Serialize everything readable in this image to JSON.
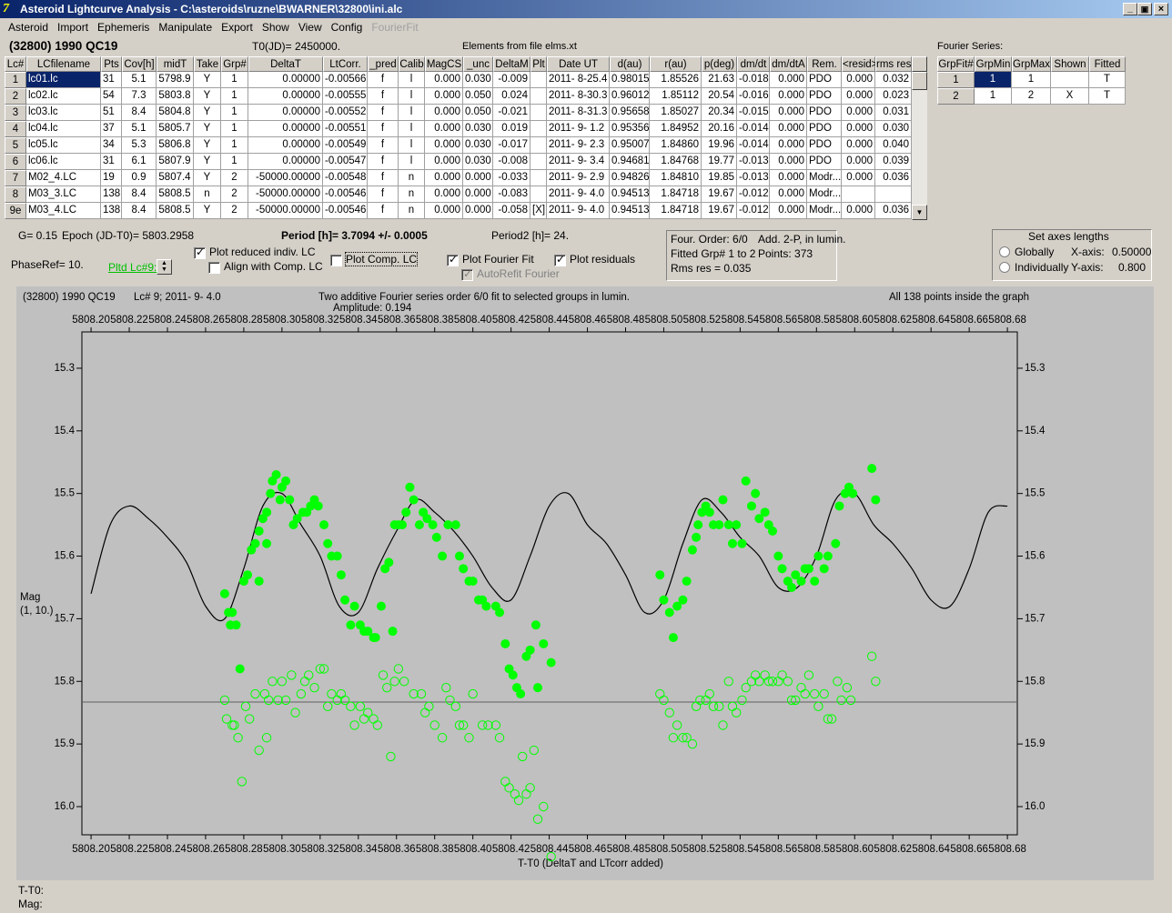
{
  "window": {
    "title": "Asteroid Lightcurve Analysis - C:\\asteroids\\ruzne\\BWARNER\\32800\\ini.alc",
    "menu": [
      "Asteroid",
      "Import",
      "Ephemeris",
      "Manipulate",
      "Export",
      "Show",
      "View",
      "Config",
      "FourierFit"
    ]
  },
  "header": {
    "object": "(32800) 1990 QC19",
    "t0": "T0(JD)= 2450000.",
    "elements": "Elements from file elms.xt"
  },
  "lc_table": {
    "columns": [
      "Lc#",
      "LCfilename",
      "Pts",
      "Cov[h]",
      "midT",
      "Take",
      "Grp#",
      "DeltaT",
      "LtCorr.",
      "_pred",
      "Calib",
      "MagCS",
      "_unc",
      "DeltaM",
      "Plt",
      "Date UT",
      "d(au)",
      "r(au)",
      "p(deg)",
      "dm/dt",
      "dm/dtA",
      "Rem.",
      "<resid>",
      "rms res"
    ],
    "rows": [
      [
        "1",
        "lc01.lc",
        "31",
        "5.1",
        "5798.9",
        "Y",
        "1",
        "0.00000",
        "-0.00566",
        "f",
        "l",
        "0.000",
        "0.030",
        "-0.009",
        null,
        "2011- 8-25.4",
        "0.98015",
        "1.85526",
        "21.63",
        "-0.018",
        "0.000",
        "PDO",
        "0.000",
        "0.032"
      ],
      [
        "2",
        "lc02.lc",
        "54",
        "7.3",
        "5803.8",
        "Y",
        "1",
        "0.00000",
        "-0.00555",
        "f",
        "l",
        "0.000",
        "0.050",
        "0.024",
        null,
        "2011- 8-30.3",
        "0.96012",
        "1.85112",
        "20.54",
        "-0.016",
        "0.000",
        "PDO",
        "0.000",
        "0.023"
      ],
      [
        "3",
        "lc03.lc",
        "51",
        "8.4",
        "5804.8",
        "Y",
        "1",
        "0.00000",
        "-0.00552",
        "f",
        "l",
        "0.000",
        "0.050",
        "-0.021",
        null,
        "2011- 8-31.3",
        "0.95658",
        "1.85027",
        "20.34",
        "-0.015",
        "0.000",
        "PDO",
        "0.000",
        "0.031"
      ],
      [
        "4",
        "lc04.lc",
        "37",
        "5.1",
        "5805.7",
        "Y",
        "1",
        "0.00000",
        "-0.00551",
        "f",
        "l",
        "0.000",
        "0.030",
        "0.019",
        null,
        "2011- 9- 1.2",
        "0.95356",
        "1.84952",
        "20.16",
        "-0.014",
        "0.000",
        "PDO",
        "0.000",
        "0.030"
      ],
      [
        "5",
        "lc05.lc",
        "34",
        "5.3",
        "5806.8",
        "Y",
        "1",
        "0.00000",
        "-0.00549",
        "f",
        "l",
        "0.000",
        "0.030",
        "-0.017",
        null,
        "2011- 9- 2.3",
        "0.95007",
        "1.84860",
        "19.96",
        "-0.014",
        "0.000",
        "PDO",
        "0.000",
        "0.040"
      ],
      [
        "6",
        "lc06.lc",
        "31",
        "6.1",
        "5807.9",
        "Y",
        "1",
        "0.00000",
        "-0.00547",
        "f",
        "l",
        "0.000",
        "0.030",
        "-0.008",
        null,
        "2011- 9- 3.4",
        "0.94681",
        "1.84768",
        "19.77",
        "-0.013",
        "0.000",
        "PDO",
        "0.000",
        "0.039"
      ],
      [
        "7",
        "M02_4.LC",
        "19",
        "0.9",
        "5807.4",
        "Y",
        "2",
        "-50000.00000",
        "-0.00548",
        "f",
        "n",
        "0.000",
        "0.000",
        "-0.033",
        null,
        "2011- 9- 2.9",
        "0.94826",
        "1.84810",
        "19.85",
        "-0.013",
        "0.000",
        "Modr...",
        "0.000",
        "0.036"
      ],
      [
        "8",
        "M03_3.LC",
        "138",
        "8.4",
        "5808.5",
        "n",
        "2",
        "-50000.00000",
        "-0.00546",
        "f",
        "n",
        "0.000",
        "0.000",
        "-0.083",
        null,
        "2011- 9- 4.0",
        "0.94513",
        "1.84718",
        "19.67",
        "-0.012",
        "0.000",
        "Modr...",
        null,
        null
      ],
      [
        "9e",
        "M03_4.LC",
        "138",
        "8.4",
        "5808.5",
        "Y",
        "2",
        "-50000.00000",
        "-0.00546",
        "f",
        "n",
        "0.000",
        "0.000",
        "-0.058",
        "[X]",
        "2011- 9- 4.0",
        "0.94513",
        "1.84718",
        "19.67",
        "-0.012",
        "0.000",
        "Modr...",
        "0.000",
        "0.036"
      ]
    ]
  },
  "fourier_table": {
    "title": "Fourier Series:",
    "columns": [
      "GrpFit#",
      "GrpMin",
      "GrpMax",
      "Shown",
      "Fitted"
    ],
    "rows": [
      [
        "1",
        "1",
        "1",
        null,
        "T"
      ],
      [
        "2",
        "1",
        "2",
        "X",
        "T"
      ]
    ]
  },
  "controls": {
    "g": "G= 0.15",
    "epoch": "Epoch (JD-T0)= 5803.2958",
    "period": "Period [h]= 3.7094 +/- 0.0005",
    "period2": "Period2 [h]= 24.",
    "phase_ref": "PhaseRef= 10.",
    "pltd_lc": "Pltd Lc#9:",
    "checkboxes": [
      {
        "label": "Plot reduced indiv. LC",
        "checked": true,
        "enabled": true
      },
      {
        "label": "Align with Comp. LC",
        "checked": false,
        "enabled": true
      },
      {
        "label": "Plot Comp. LC",
        "checked": false,
        "enabled": true
      },
      {
        "label": "Plot Fourier Fit",
        "checked": true,
        "enabled": true
      },
      {
        "label": "AutoRefit Fourier",
        "checked": true,
        "enabled": false
      },
      {
        "label": "Plot residuals",
        "checked": true,
        "enabled": true
      }
    ]
  },
  "fit_box": {
    "order": "Four. Order:  6/0",
    "mode": "Add. 2-P, in lumin.",
    "groups": "Fitted Grp# 1 to 2",
    "points": "Points: 373",
    "rms": "Rms res     = 0.035"
  },
  "axes_box": {
    "title": "Set axes lengths",
    "globally": "Globally",
    "individually": "Individually",
    "x_label": "X-axis:",
    "x_value": "0.50000",
    "y_label": "Y-axis:",
    "y_value": "0.800"
  },
  "chart_data": {
    "type": "scatter",
    "object": "(32800) 1990 QC19",
    "lc_label": "Lc# 9; 2011- 9- 4.0",
    "title": "Two additive Fourier series order 6/0 fit to selected groups in lumin.",
    "subtitle": "Amplitude: 0.194",
    "note": "All 138 points inside the graph",
    "y_label": "Mag",
    "y_label2": "(1, 10.)",
    "x_label": "T-T0 (DeltaT and LTcorr added)",
    "xlim": [
      5808.1952,
      5808.6852
    ],
    "ylim": [
      15.242,
      16.045
    ],
    "y_inverted": true,
    "xticks": [
      {
        "value": 5808.2,
        "label": "5808.20"
      },
      {
        "value": 5808.22,
        "label": "5808.22"
      },
      {
        "value": 5808.24,
        "label": "5808.24"
      },
      {
        "value": 5808.26,
        "label": "5808.26"
      },
      {
        "value": 5808.28,
        "label": "5808.28"
      },
      {
        "value": 5808.3,
        "label": "5808.30"
      },
      {
        "value": 5808.32,
        "label": "5808.32"
      },
      {
        "value": 5808.34,
        "label": "5808.34"
      },
      {
        "value": 5808.36,
        "label": "5808.36"
      },
      {
        "value": 5808.38,
        "label": "5808.38"
      },
      {
        "value": 5808.4,
        "label": "5808.40"
      },
      {
        "value": 5808.42,
        "label": "5808.42"
      },
      {
        "value": 5808.44,
        "label": "5808.44"
      },
      {
        "value": 5808.46,
        "label": "5808.46"
      },
      {
        "value": 5808.48,
        "label": "5808.48"
      },
      {
        "value": 5808.5,
        "label": "5808.50"
      },
      {
        "value": 5808.52,
        "label": "5808.52"
      },
      {
        "value": 5808.54,
        "label": "5808.54"
      },
      {
        "value": 5808.56,
        "label": "5808.56"
      },
      {
        "value": 5808.58,
        "label": "5808.58"
      },
      {
        "value": 5808.6,
        "label": "5808.60"
      },
      {
        "value": 5808.62,
        "label": "5808.62"
      },
      {
        "value": 5808.64,
        "label": "5808.64"
      },
      {
        "value": 5808.66,
        "label": "5808.66"
      },
      {
        "value": 5808.68,
        "label": "5808.68"
      }
    ],
    "yticks": [
      15.3,
      15.4,
      15.5,
      15.6,
      15.7,
      15.8,
      15.9,
      {
        "value": 16,
        "label": "16.0"
      }
    ],
    "hline": 15.833,
    "series": [
      {
        "color": "#00ff00",
        "filled": true,
        "x": [
          5808.27,
          5808.272,
          5808.274,
          5808.273,
          5808.276,
          5808.278,
          5808.28,
          5808.282,
          5808.284,
          5808.286,
          5808.288,
          5808.288,
          5808.29,
          5808.292,
          5808.292,
          5808.294,
          5808.295,
          5808.297,
          5808.299,
          5808.3,
          5808.302,
          5808.304,
          5808.306,
          5808.308,
          5808.311,
          5808.313,
          5808.315,
          5808.317,
          5808.319,
          5808.322,
          5808.324,
          5808.326,
          5808.329,
          5808.331,
          5808.333,
          5808.336,
          5808.338,
          5808.341,
          5808.343,
          5808.345,
          5808.348,
          5808.349,
          5808.352,
          5808.354,
          5808.356,
          5808.358,
          5808.359,
          5808.361,
          5808.363,
          5808.365,
          5808.367,
          5808.369,
          5808.372,
          5808.374,
          5808.376,
          5808.379,
          5808.381,
          5808.384,
          5808.387,
          5808.391,
          5808.393,
          5808.395,
          5808.398,
          5808.4,
          5808.403,
          5808.405,
          5808.407,
          5808.412,
          5808.414,
          5808.417,
          5808.419,
          5808.421,
          5808.423,
          5808.425,
          5808.428,
          5808.43,
          5808.433,
          5808.434,
          5808.437,
          5808.441,
          5808.498,
          5808.5,
          5808.503,
          5808.505,
          5808.507,
          5808.51,
          5808.512,
          5808.515,
          5808.517,
          5808.518,
          5808.52,
          5808.522,
          5808.524,
          5808.526,
          5808.529,
          5808.531,
          5808.534,
          5808.536,
          5808.538,
          5808.541,
          5808.543,
          5808.546,
          5808.548,
          5808.55,
          5808.553,
          5808.555,
          5808.557,
          5808.56,
          5808.562,
          5808.565,
          5808.567,
          5808.569,
          5808.572,
          5808.574,
          5808.576,
          5808.579,
          5808.581,
          5808.584,
          5808.586,
          5808.59,
          5808.592,
          5808.595,
          5808.597,
          5808.599,
          5808.609,
          5808.611
        ],
        "values": [
          15.66,
          15.69,
          15.69,
          15.71,
          15.71,
          15.78,
          15.64,
          15.63,
          15.59,
          15.58,
          15.64,
          15.56,
          15.54,
          15.58,
          15.53,
          15.5,
          15.48,
          15.47,
          15.51,
          15.49,
          15.48,
          15.51,
          15.55,
          15.54,
          15.53,
          15.53,
          15.52,
          15.51,
          15.52,
          15.55,
          15.58,
          15.6,
          15.6,
          15.63,
          15.67,
          15.71,
          15.68,
          15.71,
          15.72,
          15.72,
          15.73,
          15.73,
          15.68,
          15.62,
          15.61,
          15.72,
          15.55,
          15.55,
          15.55,
          15.53,
          15.49,
          15.51,
          15.55,
          15.53,
          15.54,
          15.55,
          15.57,
          15.6,
          15.55,
          15.55,
          15.6,
          15.62,
          15.64,
          15.64,
          15.67,
          15.67,
          15.68,
          15.68,
          15.69,
          15.74,
          15.78,
          15.79,
          15.81,
          15.82,
          15.76,
          15.75,
          15.71,
          15.81,
          15.74,
          15.77,
          15.63,
          15.67,
          15.69,
          15.73,
          15.68,
          15.67,
          15.64,
          15.59,
          15.57,
          15.55,
          15.53,
          15.52,
          15.53,
          15.55,
          15.55,
          15.51,
          15.55,
          15.58,
          15.55,
          15.58,
          15.48,
          15.52,
          15.5,
          15.54,
          15.53,
          15.55,
          15.56,
          15.6,
          15.62,
          15.64,
          15.65,
          15.63,
          15.64,
          15.62,
          15.62,
          15.64,
          15.6,
          15.62,
          15.6,
          15.58,
          15.52,
          15.5,
          15.49,
          15.5,
          15.46,
          15.51
        ]
      },
      {
        "color": "#00ff00",
        "filled": false,
        "x": [
          5808.27,
          5808.271,
          5808.274,
          5808.275,
          5808.277,
          5808.279,
          5808.281,
          5808.283,
          5808.286,
          5808.288,
          5808.291,
          5808.292,
          5808.293,
          5808.295,
          5808.298,
          5808.3,
          5808.302,
          5808.305,
          5808.307,
          5808.31,
          5808.312,
          5808.314,
          5808.317,
          5808.32,
          5808.322,
          5808.324,
          5808.326,
          5808.329,
          5808.331,
          5808.333,
          5808.336,
          5808.338,
          5808.341,
          5808.343,
          5808.345,
          5808.348,
          5808.35,
          5808.353,
          5808.355,
          5808.357,
          5808.359,
          5808.361,
          5808.364,
          5808.369,
          5808.373,
          5808.375,
          5808.377,
          5808.38,
          5808.384,
          5808.386,
          5808.388,
          5808.391,
          5808.393,
          5808.395,
          5808.398,
          5808.4,
          5808.405,
          5808.408,
          5808.412,
          5808.414,
          5808.417,
          5808.419,
          5808.422,
          5808.424,
          5808.426,
          5808.428,
          5808.43,
          5808.432,
          5808.434,
          5808.437,
          5808.441,
          5808.498,
          5808.5,
          5808.503,
          5808.505,
          5808.507,
          5808.51,
          5808.512,
          5808.515,
          5808.517,
          5808.519,
          5808.522,
          5808.524,
          5808.526,
          5808.529,
          5808.531,
          5808.534,
          5808.536,
          5808.538,
          5808.541,
          5808.543,
          5808.546,
          5808.548,
          5808.55,
          5808.553,
          5808.555,
          5808.557,
          5808.56,
          5808.562,
          5808.565,
          5808.567,
          5808.569,
          5808.572,
          5808.574,
          5808.576,
          5808.579,
          5808.581,
          5808.584,
          5808.586,
          5808.588,
          5808.591,
          5808.593,
          5808.596,
          5808.598,
          5808.609,
          5808.611
        ],
        "values": [
          15.83,
          15.86,
          15.87,
          15.87,
          15.89,
          15.96,
          15.84,
          15.86,
          15.82,
          15.91,
          15.82,
          15.89,
          15.83,
          15.8,
          15.83,
          15.8,
          15.83,
          15.79,
          15.85,
          15.82,
          15.8,
          15.79,
          15.81,
          15.78,
          15.78,
          15.84,
          15.82,
          15.83,
          15.82,
          15.83,
          15.84,
          15.87,
          15.84,
          15.86,
          15.85,
          15.86,
          15.87,
          15.79,
          15.81,
          15.92,
          15.8,
          15.78,
          15.8,
          15.82,
          15.82,
          15.85,
          15.84,
          15.87,
          15.89,
          15.81,
          15.83,
          15.84,
          15.87,
          15.87,
          15.89,
          15.82,
          15.87,
          15.87,
          15.87,
          15.89,
          15.96,
          15.97,
          15.98,
          15.99,
          15.92,
          15.98,
          15.97,
          15.91,
          16.02,
          16.0,
          16.08,
          15.82,
          15.83,
          15.85,
          15.89,
          15.87,
          15.89,
          15.89,
          15.9,
          15.84,
          15.83,
          15.83,
          15.82,
          15.84,
          15.84,
          15.87,
          15.8,
          15.84,
          15.85,
          15.83,
          15.81,
          15.8,
          15.79,
          15.8,
          15.79,
          15.8,
          15.8,
          15.8,
          15.79,
          15.8,
          15.83,
          15.83,
          15.81,
          15.82,
          15.79,
          15.82,
          15.84,
          15.82,
          15.86,
          15.86,
          15.8,
          15.83,
          15.81,
          15.83,
          15.76,
          15.8
        ]
      }
    ],
    "curve": {
      "color": "#000000",
      "x": [
        5808.2,
        5808.21,
        5808.22,
        5808.23,
        5808.24,
        5808.25,
        5808.26,
        5808.27,
        5808.28,
        5808.29,
        5808.3,
        5808.31,
        5808.32,
        5808.33,
        5808.34,
        5808.35,
        5808.36,
        5808.37,
        5808.38,
        5808.39,
        5808.4,
        5808.41,
        5808.42,
        5808.43,
        5808.44,
        5808.45,
        5808.46,
        5808.47,
        5808.48,
        5808.49,
        5808.5,
        5808.51,
        5808.52,
        5808.53,
        5808.54,
        5808.55,
        5808.56,
        5808.57,
        5808.58,
        5808.59,
        5808.6,
        5808.61,
        5808.62,
        5808.63,
        5808.64,
        5808.65,
        5808.66,
        5808.67,
        5808.68
      ],
      "values": [
        15.66,
        15.55,
        15.52,
        15.54,
        15.57,
        15.61,
        15.68,
        15.7,
        15.62,
        15.52,
        15.5,
        15.55,
        15.6,
        15.68,
        15.69,
        15.62,
        15.56,
        15.51,
        15.53,
        15.56,
        15.6,
        15.65,
        15.67,
        15.6,
        15.52,
        15.5,
        15.55,
        15.58,
        15.63,
        15.69,
        15.67,
        15.58,
        15.51,
        15.53,
        15.57,
        15.6,
        15.65,
        15.65,
        15.6,
        15.51,
        15.5,
        15.55,
        15.58,
        15.62,
        15.67,
        15.68,
        15.62,
        15.53,
        15.52
      ]
    }
  },
  "status": {
    "t": "T-T0:",
    "mag": "Mag:"
  }
}
